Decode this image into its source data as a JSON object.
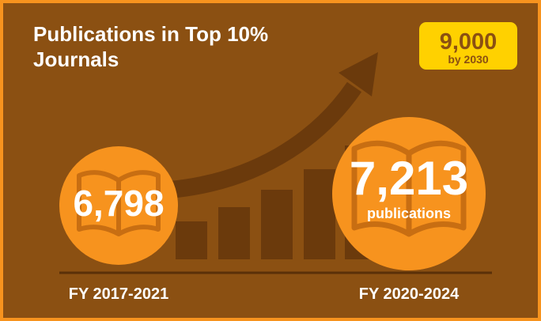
{
  "header": {
    "title_lines": [
      "Publications in Top 10%",
      "Journals"
    ]
  },
  "target": {
    "value": "9,000",
    "label": "by 2030"
  },
  "before": {
    "value": "6,798",
    "period": "FY 2017-2021"
  },
  "after": {
    "value": "7,213",
    "unit": "publications",
    "period": "FY 2020-2024"
  }
}
